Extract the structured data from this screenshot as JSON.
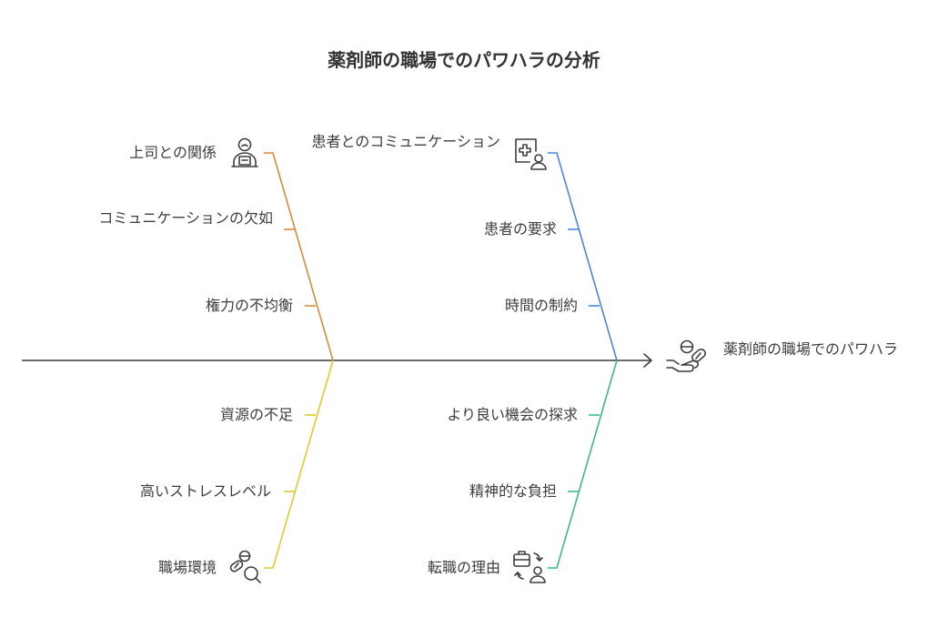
{
  "title": "薬剤師の職場でのパワハラの分析",
  "effect": "薬剤師の職場でのパワハラ",
  "categories": [
    {
      "label": "上司との関係",
      "icon": "supervisor-icon",
      "color": "#d98a38",
      "causes": [
        "コミュニケーションの欠如",
        "権力の不均衡"
      ]
    },
    {
      "label": "患者とのコミュニケーション",
      "icon": "patient-record-icon",
      "color": "#4a86e0",
      "causes": [
        "患者の要求",
        "時間の制約"
      ]
    },
    {
      "label": "職場環境",
      "icon": "pills-search-icon",
      "color": "#e2c92e",
      "causes": [
        "資源の不足",
        "高いストレスレベル"
      ]
    },
    {
      "label": "転職の理由",
      "icon": "job-change-icon",
      "color": "#3dbb7e",
      "causes": [
        "より良い機会の探求",
        "精神的な負担"
      ]
    }
  ]
}
